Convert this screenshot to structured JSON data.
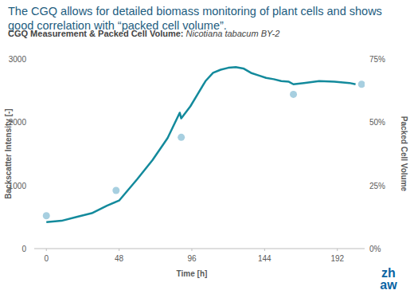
{
  "chart_data": {
    "type": "line",
    "title": "The CGQ allows for detailed biomass monitoring of plant cells and shows good correlation with “packed cell volume”.",
    "subtitle": "CGQ Measurement & Packed Cell Volume: Nicotiana tabacum BY-2",
    "x_label": "Time [h]",
    "y_label": "Backscatter Intensity [-]",
    "y2_label": "Packed Cell Volume",
    "annotations": [
      "zh",
      "aw"
    ],
    "xlim": [
      -8,
      210
    ],
    "xticks": [
      0,
      48,
      96,
      144,
      192
    ],
    "ylim": [
      0,
      3000
    ],
    "yticks": [
      0,
      1000,
      2000,
      3000
    ],
    "y2lim": [
      0,
      75
    ],
    "y2ticks": [
      {
        "value": 0,
        "label": "0%"
      },
      {
        "value": 25,
        "label": "25%"
      },
      {
        "value": 50,
        "label": "50%"
      },
      {
        "value": 75,
        "label": "75%"
      }
    ],
    "grid": false,
    "series": [
      {
        "type": "line",
        "color": "#138a9c",
        "x": [
          0,
          10,
          20,
          30,
          40,
          48,
          60,
          70,
          80,
          88,
          89,
          95,
          100,
          105,
          110,
          115,
          120,
          125,
          130,
          135,
          140,
          145,
          150,
          155,
          160,
          163,
          170,
          180,
          190,
          200,
          204
        ],
        "values": [
          420,
          440,
          500,
          560,
          680,
          760,
          1100,
          1400,
          1750,
          2150,
          2060,
          2250,
          2450,
          2650,
          2780,
          2830,
          2860,
          2870,
          2850,
          2780,
          2740,
          2700,
          2680,
          2650,
          2640,
          2600,
          2620,
          2650,
          2640,
          2620,
          2600
        ]
      },
      {
        "type": "scatter",
        "color": "#a7cfe0",
        "marker": "circle",
        "axis": "y2",
        "x": [
          0,
          46,
          89,
          163,
          208
        ],
        "values": [
          13,
          23,
          44,
          61,
          65
        ]
      }
    ]
  }
}
